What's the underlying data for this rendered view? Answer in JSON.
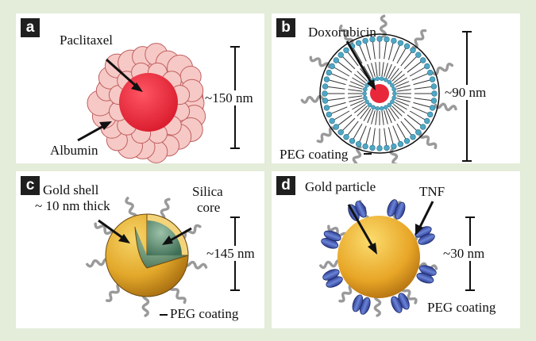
{
  "panels": [
    {
      "letter": "a",
      "drug_label": "Paclitaxel",
      "carrier_label": "Albumin",
      "size_label": "~150 nm"
    },
    {
      "letter": "b",
      "drug_label": "Doxorubicin",
      "coating_label": "PEG coating",
      "size_label": "~90 nm"
    },
    {
      "letter": "c",
      "shell_label_line1": "Gold shell",
      "shell_label_line2": "~ 10 nm thick",
      "core_label_line1": "Silica",
      "core_label_line2": "core",
      "coating_label": "PEG coating",
      "size_label": "~145 nm"
    },
    {
      "letter": "d",
      "particle_label": "Gold particle",
      "ligand_label": "TNF",
      "coating_label": "PEG coating",
      "size_label": "~30 nm"
    }
  ],
  "colors": {
    "background": "#e4ecda",
    "albumin_fill": "#f6c9c6",
    "albumin_stroke": "#c06060",
    "drug_red": "#e8283a",
    "liposome_head": "#4fa7c4",
    "gold": "#e2a82a",
    "silica": "#5f8f72",
    "tnf_blue": "#3a4fa8",
    "peg_gray": "#9a9a9a"
  }
}
